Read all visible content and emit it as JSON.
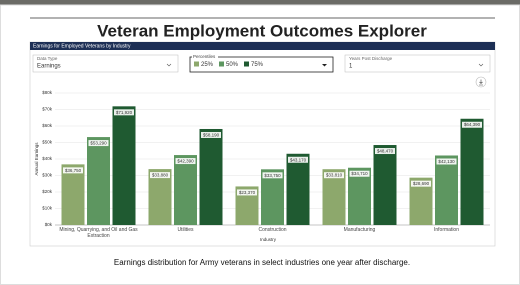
{
  "header": {
    "title": "Veteran Employment Outcomes Explorer"
  },
  "panel": {
    "title": "Earnings for Employed Veterans by Industry"
  },
  "controls": {
    "data_type": {
      "label": "Data Type",
      "value": "Earnings"
    },
    "percentiles": {
      "label": "Percentiles"
    },
    "years": {
      "label": "Years Post Discharge",
      "value": "1"
    }
  },
  "chart_data": {
    "type": "bar",
    "x_label": "Industry",
    "y_label": "Annual Earnings",
    "categories": [
      "Mining, Quarrying, and Oil and Gas Extraction",
      "Utilities",
      "Construction",
      "Manufacturing",
      "Information"
    ],
    "series": [
      {
        "name": "25%",
        "color": "#8da86c",
        "values": [
          36750,
          33880,
          23370,
          33810,
          28690
        ],
        "value_labels": [
          "$36,750",
          "$33,880",
          "$23,370",
          "$33,810",
          "$28,690"
        ]
      },
      {
        "name": "50%",
        "color": "#5d9660",
        "values": [
          53290,
          42390,
          33750,
          34710,
          42130
        ],
        "value_labels": [
          "$53,290",
          "$42,390",
          "$33,750",
          "$34,710",
          "$42,130"
        ]
      },
      {
        "name": "75%",
        "color": "#1f5a31",
        "values": [
          71920,
          58190,
          43170,
          48470,
          64390
        ],
        "value_labels": [
          "$71,920",
          "$58,190",
          "$43,170",
          "$48,470",
          "$64,390"
        ]
      }
    ],
    "ylim": [
      0,
      80000
    ],
    "yticks": [
      {
        "value": 0,
        "label": "$0k"
      },
      {
        "value": 10000,
        "label": "$10k"
      },
      {
        "value": 20000,
        "label": "$20k"
      },
      {
        "value": 30000,
        "label": "$30k"
      },
      {
        "value": 40000,
        "label": "$40k"
      },
      {
        "value": 50000,
        "label": "$50k"
      },
      {
        "value": 60000,
        "label": "$60k"
      },
      {
        "value": 70000,
        "label": "$70k"
      },
      {
        "value": 80000,
        "label": "$80k"
      }
    ],
    "grid": true
  },
  "caption": "Earnings distribution for Army veterans in select industries one year after discharge."
}
